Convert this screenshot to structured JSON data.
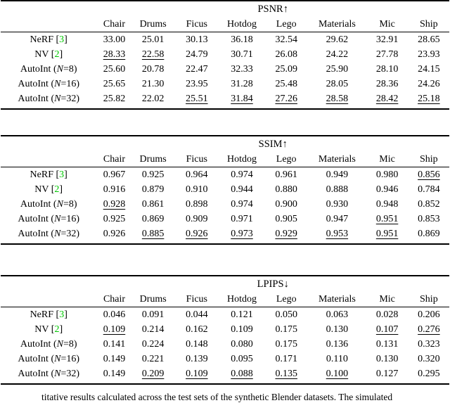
{
  "colors": {
    "citation_green": "#00C800",
    "rule_black": "#000000",
    "background": "#FFFFFF"
  },
  "columns": [
    "Chair",
    "Drums",
    "Ficus",
    "Hotdog",
    "Lego",
    "Materials",
    "Mic",
    "Ship"
  ],
  "caption_fragment": "titative results calculated across the test sets of the synthetic Blender datasets. The simulated",
  "tables": [
    {
      "title": "PSNR↑",
      "rows": [
        {
          "label": {
            "pre": "NeRF [",
            "cite": "3",
            "post": "]"
          },
          "values": [
            "33.00",
            "25.01",
            "30.13",
            "36.18",
            "32.54",
            "29.62",
            "32.91",
            "28.65"
          ],
          "styles": [
            "b",
            "b",
            "b",
            "b",
            "b",
            "b",
            "b",
            "b"
          ]
        },
        {
          "label": {
            "pre": "NV [",
            "cite": "2",
            "post": "]"
          },
          "values": [
            "28.33",
            "22.58",
            "24.79",
            "30.71",
            "26.08",
            "24.22",
            "27.78",
            "23.93"
          ],
          "styles": [
            "u",
            "u",
            "",
            "",
            "",
            "",
            "",
            ""
          ]
        },
        {
          "label": {
            "pre": "AutoInt (",
            "math": "N",
            "post": "=8)"
          },
          "values": [
            "25.60",
            "20.78",
            "22.47",
            "32.33",
            "25.09",
            "25.90",
            "28.10",
            "24.15"
          ],
          "styles": [
            "",
            "",
            "",
            "",
            "",
            "",
            "",
            ""
          ]
        },
        {
          "label": {
            "pre": "AutoInt (",
            "math": "N",
            "post": "=16)"
          },
          "values": [
            "25.65",
            "21.30",
            "23.95",
            "31.28",
            "25.48",
            "28.05",
            "28.36",
            "24.26"
          ],
          "styles": [
            "",
            "",
            "",
            "",
            "",
            "",
            "",
            ""
          ]
        },
        {
          "label": {
            "pre": "AutoInt (",
            "math": "N",
            "post": "=32)"
          },
          "values": [
            "25.82",
            "22.02",
            "25.51",
            "31.84",
            "27.26",
            "28.58",
            "28.42",
            "25.18"
          ],
          "styles": [
            "",
            "",
            "u",
            "u",
            "u",
            "u",
            "u",
            "u"
          ]
        }
      ]
    },
    {
      "title": "SSIM↑",
      "rows": [
        {
          "label": {
            "pre": "NeRF [",
            "cite": "3",
            "post": "]"
          },
          "values": [
            "0.967",
            "0.925",
            "0.964",
            "0.974",
            "0.961",
            "0.949",
            "0.980",
            "0.856"
          ],
          "styles": [
            "b",
            "b",
            "b",
            "b",
            "b",
            "b",
            "b",
            "u"
          ]
        },
        {
          "label": {
            "pre": "NV [",
            "cite": "2",
            "post": "]"
          },
          "values": [
            "0.916",
            "0.879",
            "0.910",
            "0.944",
            "0.880",
            "0.888",
            "0.946",
            "0.784"
          ],
          "styles": [
            "",
            "",
            "",
            "",
            "",
            "",
            "",
            ""
          ]
        },
        {
          "label": {
            "pre": "AutoInt (",
            "math": "N",
            "post": "=8)"
          },
          "values": [
            "0.928",
            "0.861",
            "0.898",
            "0.974",
            "0.900",
            "0.930",
            "0.948",
            "0.852"
          ],
          "styles": [
            "u",
            "",
            "",
            "b",
            "",
            "",
            "",
            ""
          ]
        },
        {
          "label": {
            "pre": "AutoInt (",
            "math": "N",
            "post": "=16)"
          },
          "values": [
            "0.925",
            "0.869",
            "0.909",
            "0.971",
            "0.905",
            "0.947",
            "0.951",
            "0.853"
          ],
          "styles": [
            "",
            "",
            "",
            "",
            "",
            "",
            "u",
            ""
          ]
        },
        {
          "label": {
            "pre": "AutoInt (",
            "math": "N",
            "post": "=32)"
          },
          "values": [
            "0.926",
            "0.885",
            "0.926",
            "0.973",
            "0.929",
            "0.953",
            "0.951",
            "0.869"
          ],
          "styles": [
            "",
            "u",
            "u",
            "u",
            "u",
            "u",
            "u",
            "b"
          ]
        }
      ]
    },
    {
      "title": "LPIPS↓",
      "rows": [
        {
          "label": {
            "pre": "NeRF [",
            "cite": "3",
            "post": "]"
          },
          "values": [
            "0.046",
            "0.091",
            "0.044",
            "0.121",
            "0.050",
            "0.063",
            "0.028",
            "0.206"
          ],
          "styles": [
            "b",
            "b",
            "b",
            "",
            "b",
            "b",
            "b",
            "b"
          ]
        },
        {
          "label": {
            "pre": "NV [",
            "cite": "2",
            "post": "]"
          },
          "values": [
            "0.109",
            "0.214",
            "0.162",
            "0.109",
            "0.175",
            "0.130",
            "0.107",
            "0.276"
          ],
          "styles": [
            "u",
            "",
            "",
            "",
            "",
            "",
            "u",
            "u"
          ]
        },
        {
          "label": {
            "pre": "AutoInt (",
            "math": "N",
            "post": "=8)"
          },
          "values": [
            "0.141",
            "0.224",
            "0.148",
            "0.080",
            "0.175",
            "0.136",
            "0.131",
            "0.323"
          ],
          "styles": [
            "",
            "",
            "",
            "b",
            "",
            "",
            "",
            ""
          ]
        },
        {
          "label": {
            "pre": "AutoInt (",
            "math": "N",
            "post": "=16)"
          },
          "values": [
            "0.149",
            "0.221",
            "0.139",
            "0.095",
            "0.171",
            "0.110",
            "0.130",
            "0.320"
          ],
          "styles": [
            "",
            "",
            "",
            "",
            "",
            "",
            "",
            ""
          ]
        },
        {
          "label": {
            "pre": "AutoInt (",
            "math": "N",
            "post": "=32)"
          },
          "values": [
            "0.149",
            "0.209",
            "0.109",
            "0.088",
            "0.135",
            "0.100",
            "0.127",
            "0.295"
          ],
          "styles": [
            "",
            "u",
            "u",
            "u",
            "u",
            "u",
            "",
            ""
          ]
        }
      ]
    }
  ]
}
